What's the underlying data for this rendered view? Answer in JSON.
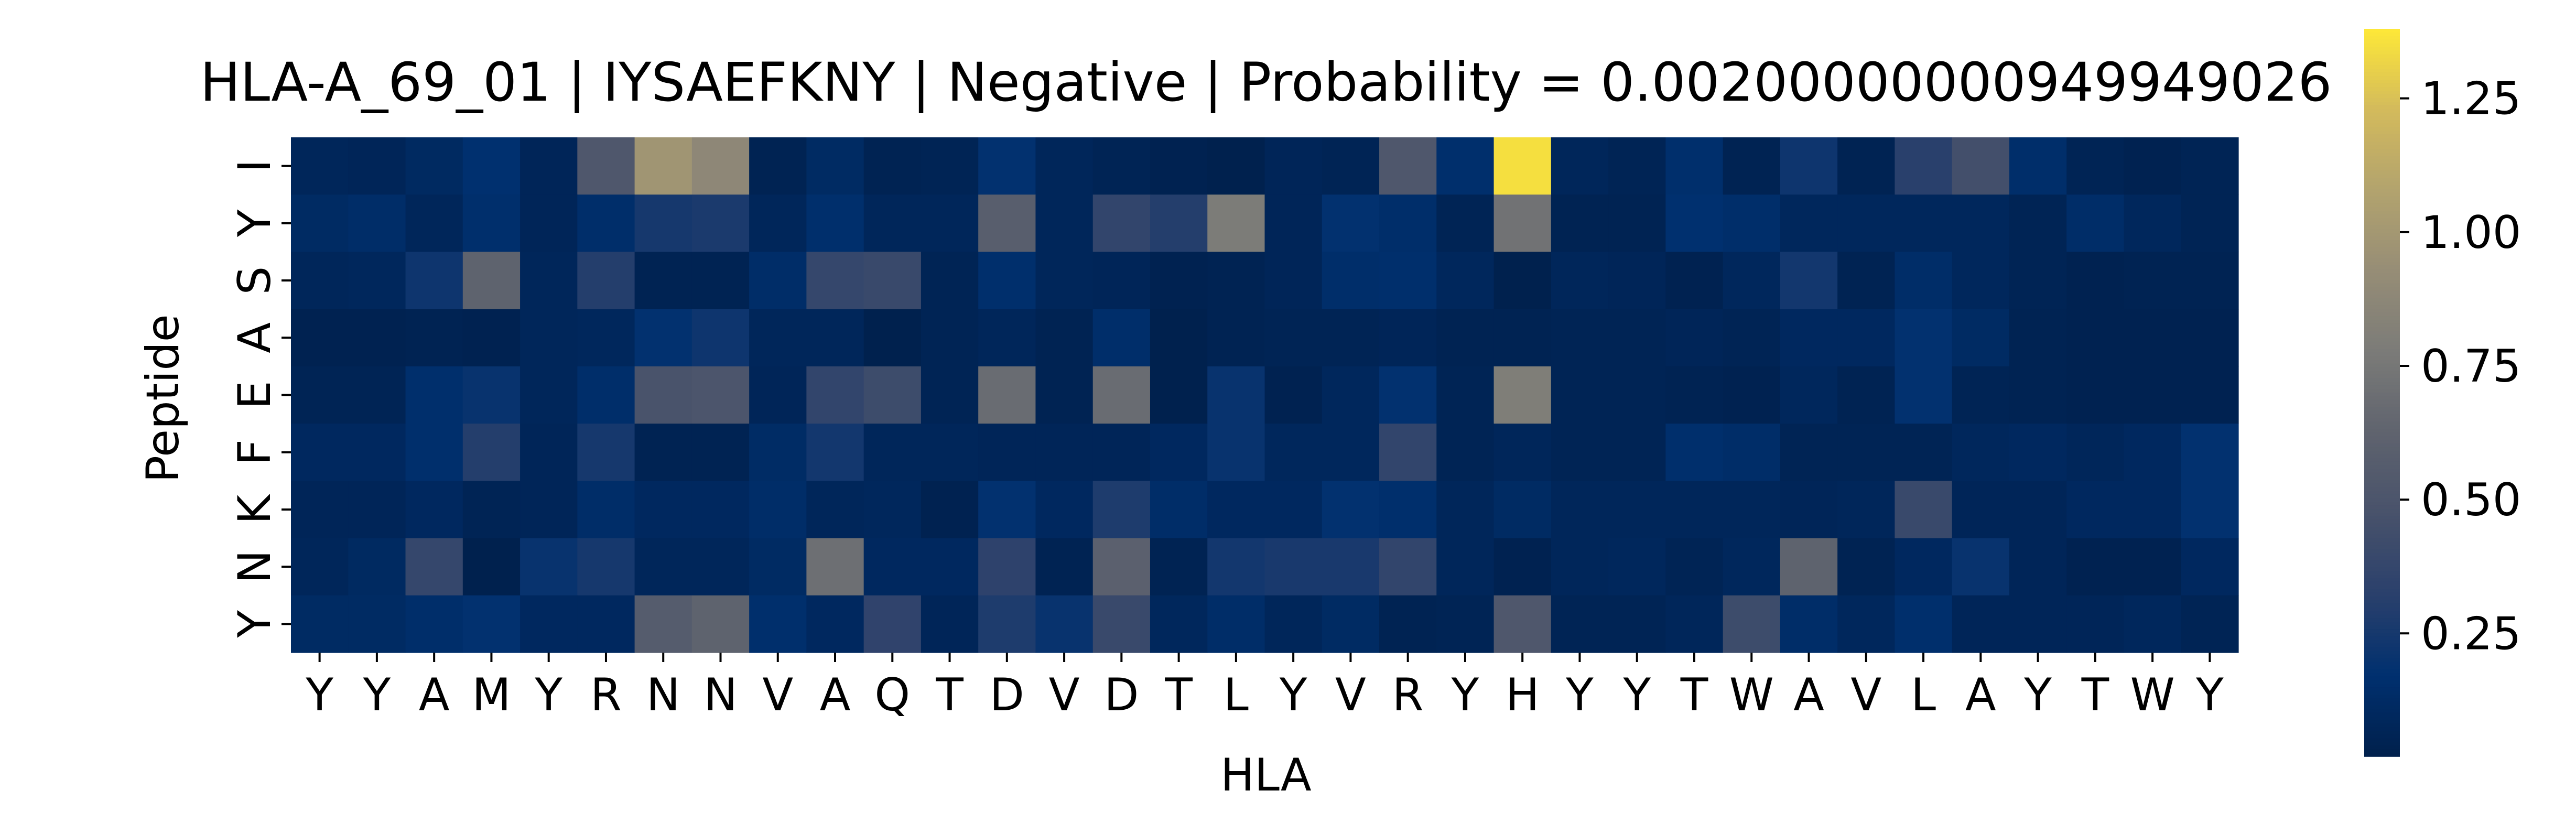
{
  "chart_data": {
    "type": "heatmap",
    "title": "HLA-A_69_01 | IYSAEFKNY | Negative | Probability = 0.00200000000949949026",
    "xlabel": "HLA",
    "ylabel": "Peptide",
    "x_categories": [
      "Y",
      "Y",
      "A",
      "M",
      "Y",
      "R",
      "N",
      "N",
      "V",
      "A",
      "Q",
      "T",
      "D",
      "V",
      "D",
      "T",
      "L",
      "Y",
      "V",
      "R",
      "Y",
      "H",
      "Y",
      "Y",
      "T",
      "W",
      "A",
      "V",
      "L",
      "A",
      "Y",
      "T",
      "W",
      "Y"
    ],
    "y_categories": [
      "I",
      "Y",
      "S",
      "A",
      "E",
      "F",
      "K",
      "N",
      "Y"
    ],
    "values": [
      [
        0.08,
        0.07,
        0.11,
        0.17,
        0.07,
        0.52,
        0.98,
        0.88,
        0.05,
        0.12,
        0.05,
        0.06,
        0.18,
        0.08,
        0.06,
        0.04,
        0.03,
        0.07,
        0.06,
        0.52,
        0.16,
        1.35,
        0.08,
        0.06,
        0.16,
        0.05,
        0.22,
        0.05,
        0.32,
        0.45,
        0.15,
        0.06,
        0.04,
        0.06
      ],
      [
        0.12,
        0.14,
        0.08,
        0.16,
        0.07,
        0.15,
        0.25,
        0.27,
        0.08,
        0.16,
        0.08,
        0.08,
        0.58,
        0.08,
        0.36,
        0.3,
        0.78,
        0.07,
        0.18,
        0.15,
        0.06,
        0.72,
        0.05,
        0.05,
        0.17,
        0.15,
        0.09,
        0.09,
        0.09,
        0.09,
        0.06,
        0.14,
        0.09,
        0.06
      ],
      [
        0.08,
        0.09,
        0.22,
        0.62,
        0.08,
        0.3,
        0.05,
        0.05,
        0.14,
        0.38,
        0.4,
        0.06,
        0.16,
        0.08,
        0.07,
        0.04,
        0.05,
        0.07,
        0.15,
        0.16,
        0.09,
        0.03,
        0.08,
        0.07,
        0.04,
        0.09,
        0.24,
        0.05,
        0.14,
        0.09,
        0.06,
        0.04,
        0.05,
        0.05
      ],
      [
        0.04,
        0.04,
        0.05,
        0.04,
        0.08,
        0.09,
        0.18,
        0.22,
        0.08,
        0.08,
        0.03,
        0.06,
        0.08,
        0.05,
        0.15,
        0.03,
        0.05,
        0.06,
        0.06,
        0.07,
        0.05,
        0.05,
        0.06,
        0.06,
        0.07,
        0.06,
        0.1,
        0.1,
        0.18,
        0.12,
        0.05,
        0.04,
        0.04,
        0.04
      ],
      [
        0.06,
        0.06,
        0.16,
        0.2,
        0.08,
        0.15,
        0.48,
        0.5,
        0.07,
        0.36,
        0.42,
        0.06,
        0.68,
        0.05,
        0.68,
        0.03,
        0.2,
        0.04,
        0.09,
        0.18,
        0.06,
        0.8,
        0.06,
        0.06,
        0.05,
        0.04,
        0.09,
        0.05,
        0.18,
        0.06,
        0.05,
        0.04,
        0.04,
        0.04
      ],
      [
        0.1,
        0.1,
        0.16,
        0.3,
        0.07,
        0.25,
        0.05,
        0.05,
        0.13,
        0.24,
        0.08,
        0.08,
        0.07,
        0.07,
        0.07,
        0.1,
        0.2,
        0.09,
        0.09,
        0.36,
        0.06,
        0.08,
        0.06,
        0.06,
        0.16,
        0.14,
        0.06,
        0.06,
        0.06,
        0.09,
        0.1,
        0.08,
        0.1,
        0.18
      ],
      [
        0.07,
        0.07,
        0.1,
        0.06,
        0.07,
        0.14,
        0.1,
        0.1,
        0.14,
        0.08,
        0.09,
        0.04,
        0.18,
        0.1,
        0.28,
        0.14,
        0.1,
        0.1,
        0.18,
        0.16,
        0.08,
        0.12,
        0.08,
        0.08,
        0.08,
        0.08,
        0.07,
        0.08,
        0.4,
        0.07,
        0.07,
        0.1,
        0.1,
        0.18
      ],
      [
        0.08,
        0.11,
        0.38,
        0.03,
        0.2,
        0.25,
        0.08,
        0.08,
        0.12,
        0.7,
        0.1,
        0.1,
        0.34,
        0.05,
        0.6,
        0.05,
        0.24,
        0.26,
        0.26,
        0.36,
        0.08,
        0.04,
        0.08,
        0.09,
        0.06,
        0.09,
        0.62,
        0.05,
        0.1,
        0.2,
        0.07,
        0.04,
        0.04,
        0.1
      ],
      [
        0.12,
        0.12,
        0.15,
        0.18,
        0.1,
        0.1,
        0.56,
        0.62,
        0.16,
        0.1,
        0.35,
        0.07,
        0.28,
        0.2,
        0.4,
        0.09,
        0.14,
        0.08,
        0.12,
        0.05,
        0.06,
        0.52,
        0.06,
        0.06,
        0.08,
        0.42,
        0.14,
        0.09,
        0.16,
        0.07,
        0.07,
        0.07,
        0.09,
        0.06
      ]
    ],
    "colorbar": {
      "range": [
        0.02,
        1.38
      ],
      "ticks": [
        0.25,
        0.5,
        0.75,
        1.0,
        1.25
      ],
      "tick_labels": [
        "0.25",
        "0.50",
        "0.75",
        "1.00",
        "1.25"
      ],
      "colormap": "cividis",
      "colormap_stops": [
        "#00204c",
        "#00306f",
        "#2a406c",
        "#48526b",
        "#5f636e",
        "#7b7b78",
        "#968d76",
        "#b2a36e",
        "#d3ba5c",
        "#fee838"
      ]
    },
    "grid": false,
    "legend": "colorbar-right"
  }
}
